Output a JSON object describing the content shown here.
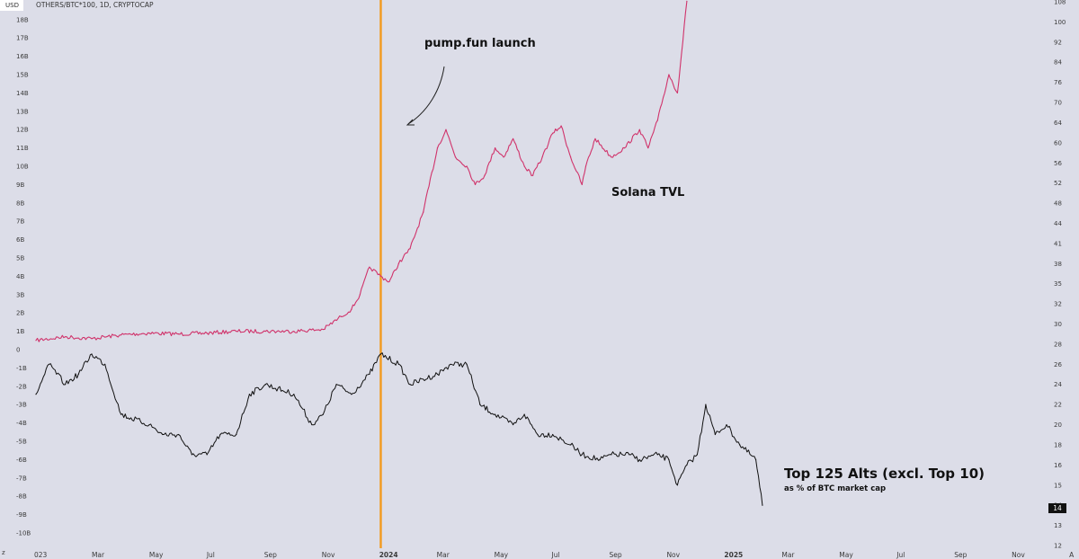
{
  "header": {
    "currency": "USD",
    "symbol": "OTHERS/BTC*100, 1D, CRYPTOCAP"
  },
  "annotations": {
    "event_label": "pump.fun launch",
    "tvl_label": "Solana TVL",
    "alts_title": "Top 125 Alts (excl. Top 10)",
    "alts_subtitle": "as % of BTC market cap",
    "price_tag": "14"
  },
  "colors": {
    "background": "#dcdde8",
    "tvl": "#d0336b",
    "alts": "#111111",
    "event_line": "#f39a1e",
    "price_tag_bg": "#111111"
  },
  "chart_data": {
    "type": "line",
    "title": "",
    "x_ticks": [
      "023",
      "Mar",
      "May",
      "Jul",
      "Sep",
      "Nov",
      "2024",
      "Mar",
      "May",
      "Jul",
      "Sep",
      "Nov",
      "2025",
      "Mar",
      "May",
      "Jul",
      "Sep",
      "Nov",
      "A"
    ],
    "bold_x_ticks": [
      "2024",
      "2025"
    ],
    "left_axis_ticks": [
      "18B",
      "17B",
      "16B",
      "15B",
      "14B",
      "13B",
      "12B",
      "11B",
      "10B",
      "9B",
      "8B",
      "7B",
      "6B",
      "5B",
      "4B",
      "3B",
      "2B",
      "1B",
      "0",
      "-1B",
      "-2B",
      "-3B",
      "-4B",
      "-5B",
      "-6B",
      "-7B",
      "-8B",
      "-9B",
      "-10B"
    ],
    "left_axis_corner": "z",
    "right_axis_ticks": [
      "108",
      "100",
      "92",
      "84",
      "76",
      "70",
      "64",
      "60",
      "56",
      "52",
      "48",
      "44",
      "41",
      "38",
      "35",
      "32",
      "30",
      "28",
      "26",
      "24",
      "22",
      "20",
      "18",
      "16",
      "15",
      "14",
      "13",
      "12"
    ],
    "event": {
      "date": "2024-01-01",
      "label": "pump.fun launch"
    },
    "series": [
      {
        "name": "Solana TVL",
        "axis": "left",
        "unit": "USD",
        "x": [
          "2023-01-01",
          "2023-02-01",
          "2023-03-01",
          "2023-04-01",
          "2023-05-01",
          "2023-06-01",
          "2023-07-01",
          "2023-08-01",
          "2023-09-01",
          "2023-10-01",
          "2023-11-01",
          "2023-11-20",
          "2023-12-01",
          "2023-12-10",
          "2023-12-20",
          "2024-01-01",
          "2024-01-10",
          "2024-01-20",
          "2024-02-01",
          "2024-02-15",
          "2024-03-01",
          "2024-03-10",
          "2024-03-20",
          "2024-04-01",
          "2024-04-10",
          "2024-04-20",
          "2024-05-01",
          "2024-05-10",
          "2024-05-20",
          "2024-06-01",
          "2024-06-10",
          "2024-06-20",
          "2024-07-01",
          "2024-07-10",
          "2024-07-20",
          "2024-08-01",
          "2024-08-05",
          "2024-08-15",
          "2024-09-01",
          "2024-09-15",
          "2024-10-01",
          "2024-10-10",
          "2024-10-20",
          "2024-11-01",
          "2024-11-10",
          "2024-11-20"
        ],
        "values": [
          0.5,
          0.7,
          0.6,
          0.8,
          0.9,
          0.85,
          0.9,
          1.0,
          1.0,
          1.0,
          1.1,
          1.8,
          2.2,
          3.0,
          4.5,
          4.0,
          3.7,
          4.7,
          5.5,
          7.5,
          11.0,
          12.0,
          10.5,
          10.0,
          9.0,
          9.5,
          11.0,
          10.5,
          11.5,
          10.0,
          9.5,
          10.5,
          11.8,
          12.2,
          10.5,
          9.0,
          10.0,
          11.5,
          10.5,
          11.0,
          12.0,
          11.0,
          12.5,
          15.0,
          14.0,
          19.0
        ]
      },
      {
        "name": "Top 125 Alts (excl. Top 10)",
        "axis": "right",
        "unit": "% of BTC market cap",
        "x": [
          "2023-01-01",
          "2023-01-15",
          "2023-02-01",
          "2023-02-15",
          "2023-03-01",
          "2023-03-15",
          "2023-04-01",
          "2023-05-01",
          "2023-05-15",
          "2023-06-01",
          "2023-06-15",
          "2023-07-01",
          "2023-07-15",
          "2023-08-01",
          "2023-08-15",
          "2023-09-01",
          "2023-10-01",
          "2023-10-20",
          "2023-11-01",
          "2023-11-15",
          "2023-12-01",
          "2023-12-20",
          "2024-01-01",
          "2024-01-20",
          "2024-02-01",
          "2024-03-01",
          "2024-03-15",
          "2024-04-01",
          "2024-04-15",
          "2024-05-01",
          "2024-05-20",
          "2024-06-01",
          "2024-06-15",
          "2024-07-01",
          "2024-07-20",
          "2024-08-01",
          "2024-08-20",
          "2024-09-01",
          "2024-09-20",
          "2024-10-01",
          "2024-10-20",
          "2024-11-01",
          "2024-11-10",
          "2024-11-20",
          "2024-12-01",
          "2024-12-10",
          "2024-12-20",
          "2025-01-01",
          "2025-01-15",
          "2025-02-01",
          "2025-02-08"
        ],
        "values": [
          23,
          26,
          24,
          25,
          27,
          26,
          21,
          20,
          19,
          19,
          17,
          17,
          19,
          19,
          23,
          24,
          23,
          20,
          21,
          24,
          23,
          25,
          27,
          26,
          24,
          25,
          26,
          26,
          22,
          21,
          20,
          21,
          19,
          19,
          18,
          17,
          16.5,
          17,
          17,
          16.5,
          17,
          16.5,
          15,
          16,
          17,
          22,
          19,
          20,
          18,
          16.5,
          14
        ]
      }
    ]
  }
}
